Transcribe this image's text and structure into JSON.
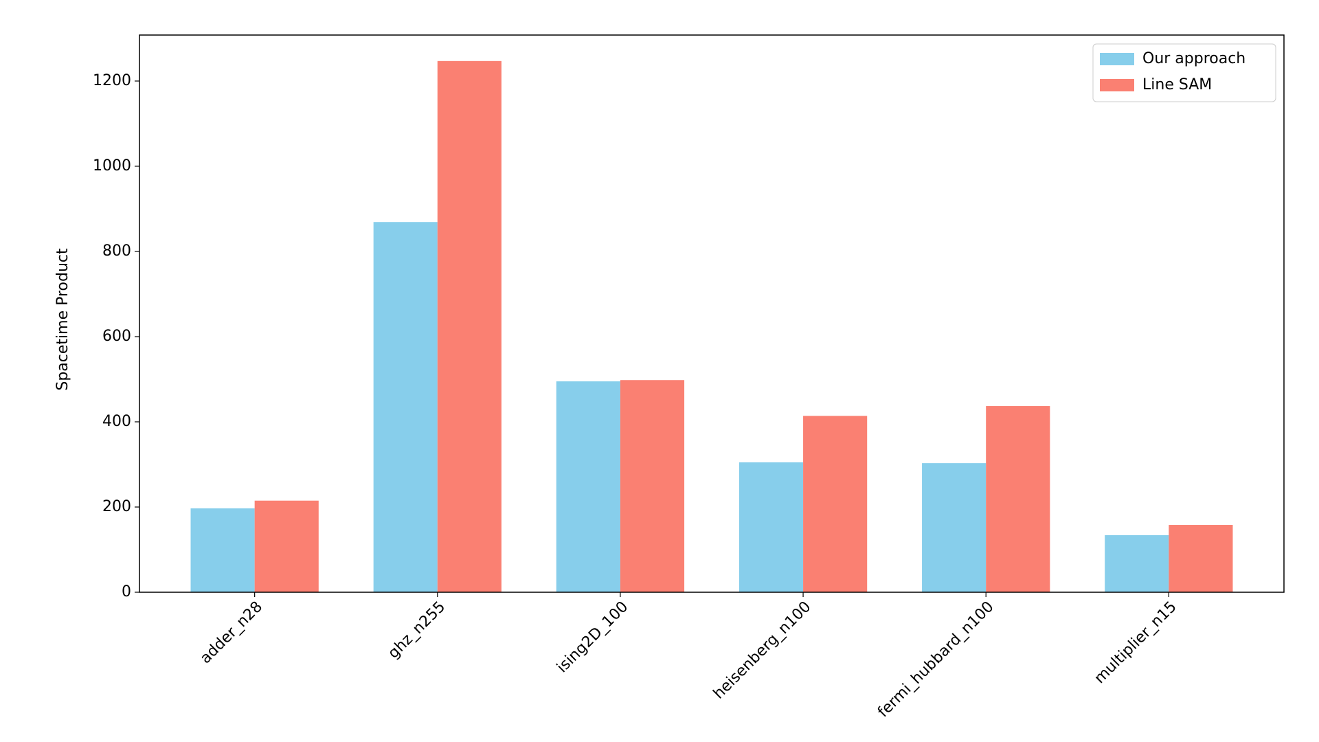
{
  "chart_data": {
    "type": "bar",
    "y_label": "Spacetime Product",
    "categories": [
      "adder_n28",
      "ghz_n255",
      "ising2D_100",
      "heisenberg_n100",
      "fermi_hubbard_n100",
      "multiplier_n15"
    ],
    "series": [
      {
        "name": "Our approach",
        "color": "#87ceeb",
        "values": [
          197,
          869,
          495,
          305,
          303,
          134
        ]
      },
      {
        "name": "Line SAM",
        "color": "#fa8072",
        "values": [
          215,
          1247,
          498,
          414,
          437,
          158
        ]
      }
    ],
    "ylim": [
      0,
      1308
    ],
    "yticks": [
      0,
      200,
      400,
      600,
      800,
      1000,
      1200
    ],
    "legend": "upper right"
  }
}
